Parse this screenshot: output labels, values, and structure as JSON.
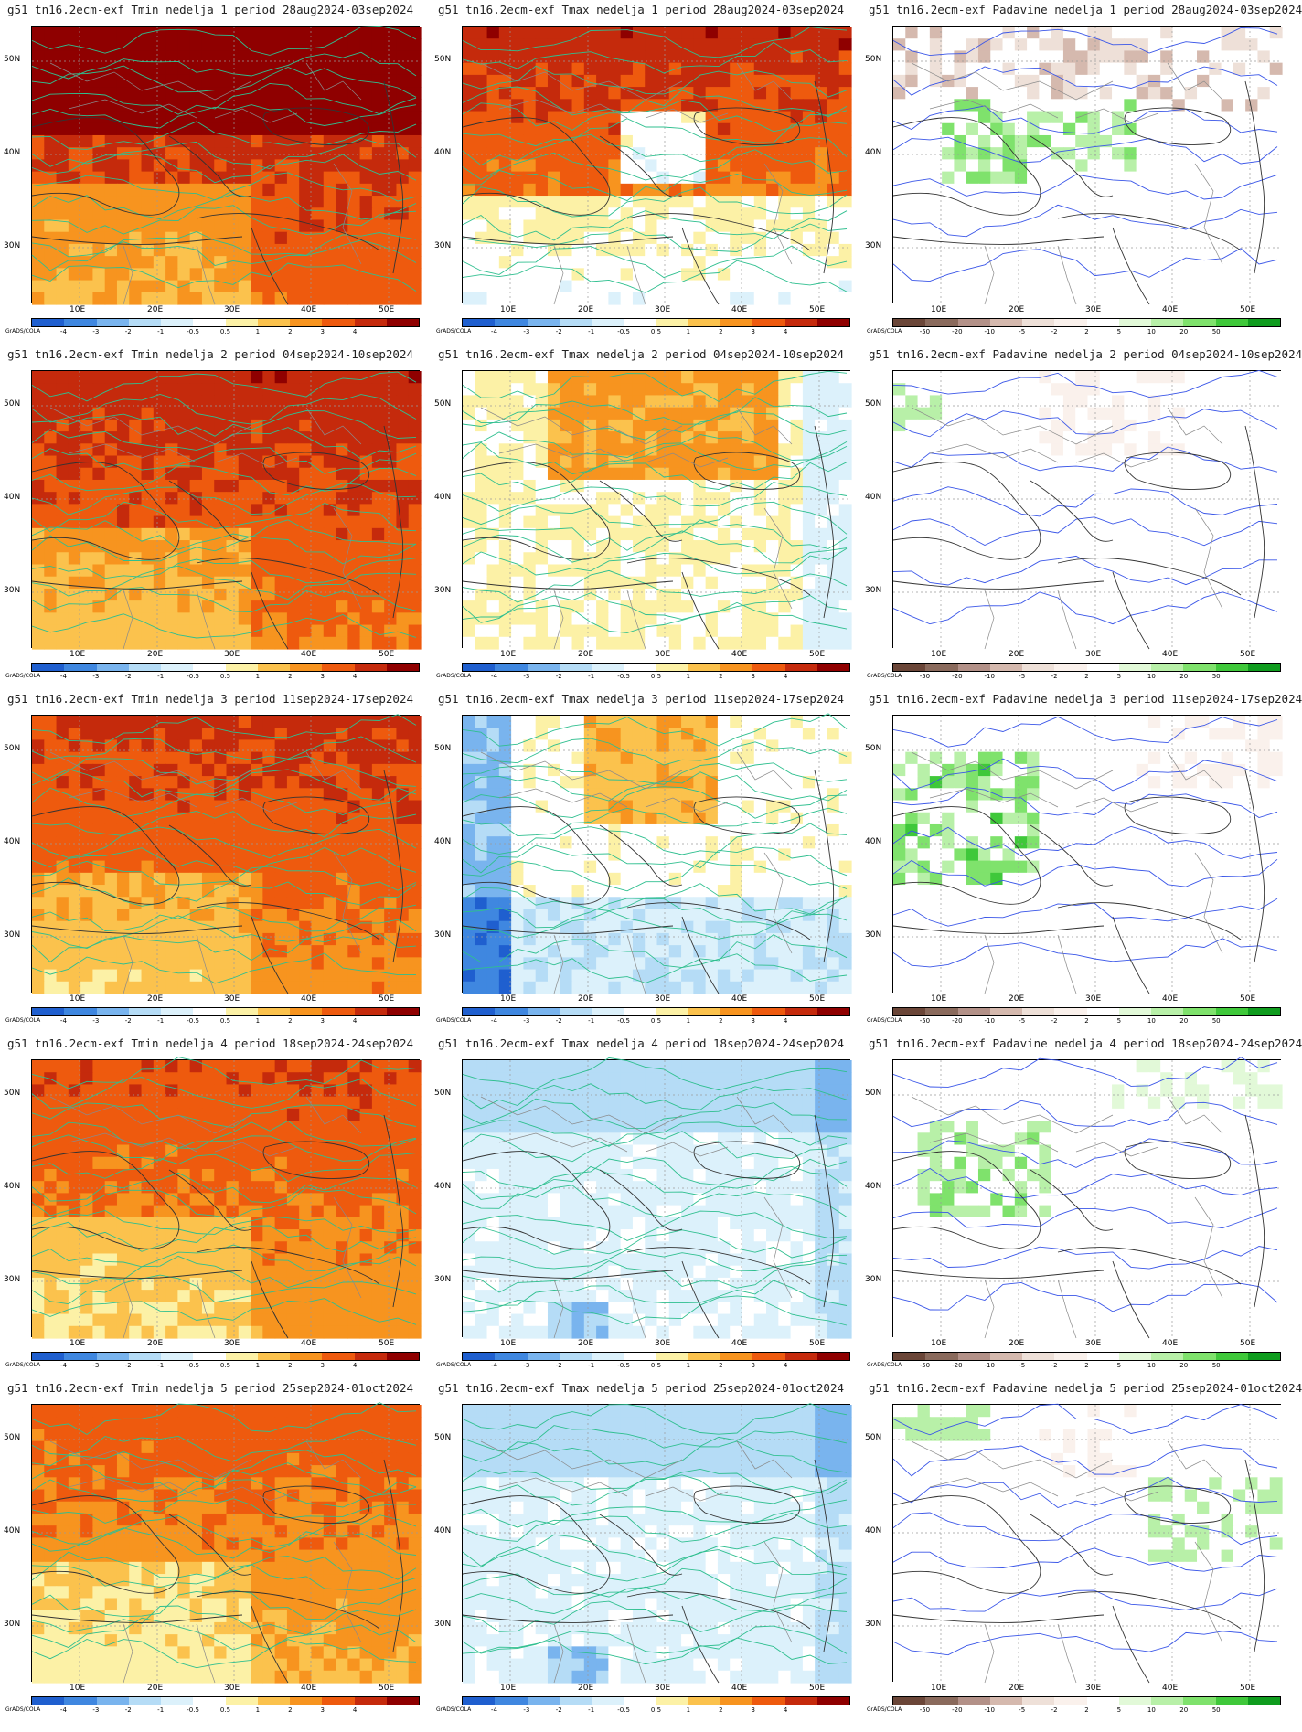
{
  "panels": [
    {
      "title": "g51 tn16.2ecm-exf Tmin nedelja 1 period 28aug2024-03sep2024",
      "type": "tmin"
    },
    {
      "title": "g51 tn16.2ecm-exf Tmax nedelja 1 period 28aug2024-03sep2024",
      "type": "tmax"
    },
    {
      "title": "g51 tn16.2ecm-exf Padavine nedelja 1 period 28aug2024-03sep2024",
      "type": "pad"
    },
    {
      "title": "g51 tn16.2ecm-exf Tmin nedelja 2 period 04sep2024-10sep2024",
      "type": "tmin"
    },
    {
      "title": "g51 tn16.2ecm-exf Tmax nedelja 2 period 04sep2024-10sep2024",
      "type": "tmax"
    },
    {
      "title": "g51 tn16.2ecm-exf Padavine nedelja 2 period 04sep2024-10sep2024",
      "type": "pad"
    },
    {
      "title": "g51 tn16.2ecm-exf Tmin nedelja 3 period 11sep2024-17sep2024",
      "type": "tmin"
    },
    {
      "title": "g51 tn16.2ecm-exf Tmax nedelja 3 period 11sep2024-17sep2024",
      "type": "tmax"
    },
    {
      "title": "g51 tn16.2ecm-exf Padavine nedelja 3 period 11sep2024-17sep2024",
      "type": "pad"
    },
    {
      "title": "g51 tn16.2ecm-exf Tmin nedelja 4 period 18sep2024-24sep2024",
      "type": "tmin"
    },
    {
      "title": "g51 tn16.2ecm-exf Tmax nedelja 4 period 18sep2024-24sep2024",
      "type": "tmax"
    },
    {
      "title": "g51 tn16.2ecm-exf Padavine nedelja 4 period 18sep2024-24sep2024",
      "type": "pad"
    },
    {
      "title": "g51 tn16.2ecm-exf Tmin nedelja 5 period 25sep2024-01oct2024",
      "type": "tmin"
    },
    {
      "title": "g51 tn16.2ecm-exf Tmax nedelja 5 period 25sep2024-01oct2024",
      "type": "tmax"
    },
    {
      "title": "g51 tn16.2ecm-exf Padavine nedelja 5 period 25sep2024-01oct2024",
      "type": "pad"
    }
  ],
  "axes": {
    "lat_labels": [
      "50N",
      "40N",
      "30N"
    ],
    "lon_labels": [
      "10E",
      "20E",
      "30E",
      "40E",
      "50E"
    ]
  },
  "colorbars": {
    "temperature": {
      "labels": [
        "-4",
        "-3",
        "-2",
        "-1",
        "-0.5",
        "0.5",
        "1",
        "2",
        "3",
        "4"
      ],
      "colors": [
        "#1f5fcf",
        "#3f87e0",
        "#79b4ee",
        "#b5dcf6",
        "#dcf1fb",
        "#ffffff",
        "#fcf1a6",
        "#fbc24d",
        "#f7941f",
        "#ee5a0e",
        "#c52a0c",
        "#8f0000"
      ]
    },
    "precipitation": {
      "labels": [
        "-50",
        "-20",
        "-10",
        "-5",
        "-2",
        "2",
        "5",
        "10",
        "20",
        "50"
      ],
      "colors": [
        "#6b4638",
        "#8a6a5c",
        "#b39188",
        "#d5b9ae",
        "#eee0d8",
        "#faf1ec",
        "#ffffff",
        "#e2f9d8",
        "#b8f0a8",
        "#7fe26c",
        "#3fc83a",
        "#0f9c1e"
      ]
    }
  },
  "grads_label": "GrADS/COLA"
}
